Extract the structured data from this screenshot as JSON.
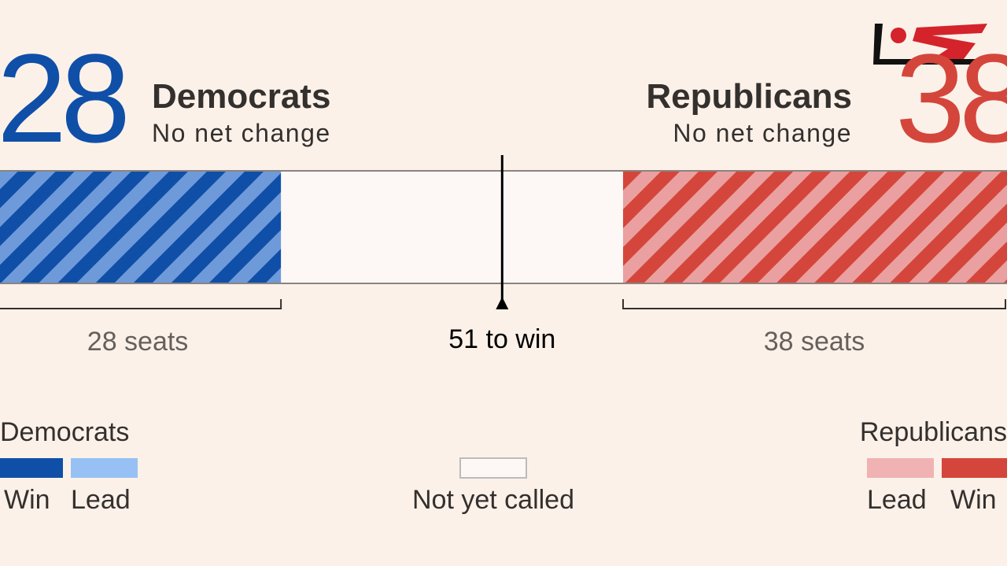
{
  "chart_data": {
    "type": "seat-bar",
    "xlim": [
      0,
      100
    ],
    "threshold": {
      "value": 51,
      "label": "51 to win"
    },
    "series": [
      {
        "name": "Democrats",
        "side": "left",
        "values": [
          28
        ],
        "value_labels": [
          "28 seats"
        ],
        "change": "No net change",
        "color": "#0f4fa8",
        "lead_color": "#6f9ad9"
      },
      {
        "name": "Republicans",
        "side": "right",
        "values": [
          38
        ],
        "value_labels": [
          "38 seats"
        ],
        "change": "No net change",
        "color": "#d4463b",
        "lead_color": "#eaa0a0"
      }
    ],
    "legend": [
      {
        "title": "Democrats",
        "items": [
          {
            "label": "Win",
            "color": "#0f4fa8"
          },
          {
            "label": "Lead",
            "color": "#97c1f5"
          }
        ]
      },
      {
        "items": [
          {
            "label": "Not yet called",
            "color": "#fdf8f5"
          }
        ]
      },
      {
        "title": "Republicans",
        "items": [
          {
            "label": "Lead",
            "color": "#f0b2b2"
          },
          {
            "label": "Win",
            "color": "#d4463b"
          }
        ]
      }
    ]
  }
}
